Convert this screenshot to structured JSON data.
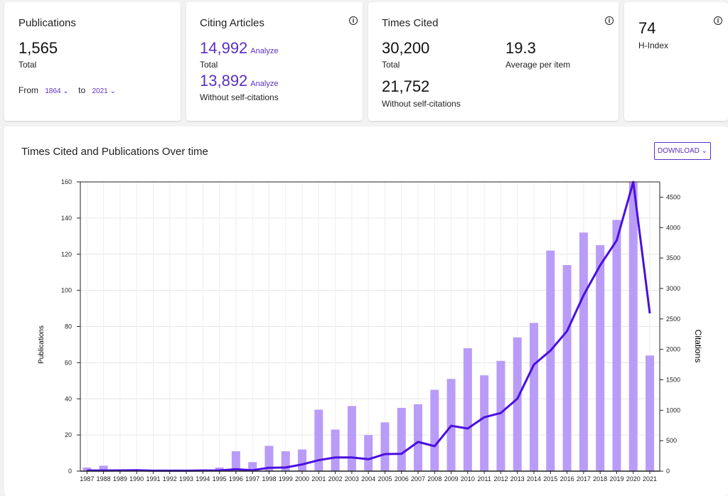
{
  "publications": {
    "title": "Publications",
    "value": "1,565",
    "label": "Total",
    "from_label": "From",
    "from_value": "1864",
    "to_label": "to",
    "to_value": "2021"
  },
  "citing": {
    "title": "Citing Articles",
    "total": "14,992",
    "total_label": "Total",
    "analyze": "Analyze",
    "without": "13,892",
    "without_label": "Without self-citations"
  },
  "times_cited": {
    "title": "Times Cited",
    "total": "30,200",
    "total_label": "Total",
    "avg": "19.3",
    "avg_label": "Average per item",
    "without": "21,752",
    "without_label": "Without self-citations"
  },
  "hindex": {
    "value": "74",
    "label": "H-Index"
  },
  "info_icon": "i",
  "panel": {
    "title": "Times Cited and Publications Over time",
    "download": "DOWNLOAD ⌄"
  },
  "colors": {
    "accent": "#5a2fc2",
    "bar": "#b99cf8",
    "line": "#4a0fe0"
  },
  "chart_data": {
    "type": "bar+line",
    "categories": [
      "1987",
      "1988",
      "1989",
      "1990",
      "1991",
      "1992",
      "1993",
      "1994",
      "1995",
      "1996",
      "1997",
      "1998",
      "1999",
      "2000",
      "2001",
      "2002",
      "2003",
      "2004",
      "2005",
      "2006",
      "2007",
      "2008",
      "2009",
      "2010",
      "2011",
      "2012",
      "2013",
      "2014",
      "2015",
      "2016",
      "2017",
      "2018",
      "2019",
      "2020",
      "2021"
    ],
    "series": [
      {
        "values": [
          2,
          3,
          1,
          1,
          0,
          0,
          0,
          1,
          2,
          11,
          5,
          14,
          11,
          12,
          34,
          23,
          36,
          20,
          27,
          35,
          37,
          45,
          51,
          68,
          53,
          61,
          74,
          82,
          122,
          114,
          132,
          125,
          139,
          160,
          64
        ]
      },
      {
        "values": [
          10,
          10,
          12,
          15,
          8,
          8,
          8,
          10,
          12,
          30,
          15,
          55,
          60,
          110,
          180,
          225,
          225,
          195,
          280,
          285,
          480,
          410,
          745,
          700,
          885,
          955,
          1190,
          1750,
          1980,
          2300,
          2890,
          3380,
          3790,
          4750,
          2590
        ]
      }
    ],
    "ylabel": "Publications",
    "y2label": "Citations",
    "ylim": [
      0,
      160
    ],
    "y2lim": [
      0,
      4750
    ],
    "yticks": [
      0,
      20,
      40,
      60,
      80,
      100,
      120,
      140,
      160
    ],
    "y2ticks": [
      0,
      500,
      1000,
      1500,
      2000,
      2500,
      3000,
      3500,
      4000,
      4500
    ],
    "grid": true
  }
}
